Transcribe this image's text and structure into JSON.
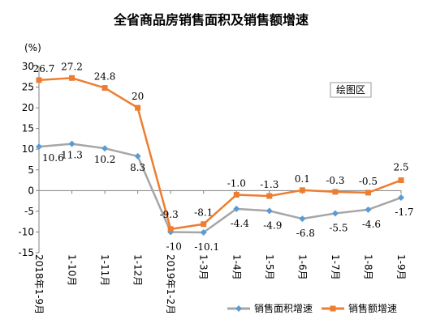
{
  "chart_data": {
    "type": "line",
    "title": "全省商品房销售面积及销售额增速",
    "unit_label": "(%)",
    "categories": [
      "2018年1-9月",
      "1-10月",
      "1-11月",
      "1-12月",
      "2019年1-2月",
      "1-3月",
      "1-4月",
      "1-5月",
      "1-6月",
      "1-7月",
      "1-8月",
      "1-9月"
    ],
    "ylim": [
      -15,
      30
    ],
    "yticks": [
      -15,
      -10,
      -5,
      0,
      5,
      10,
      15,
      20,
      25,
      30
    ],
    "grid": false,
    "legend_position": "bottom-right",
    "series": [
      {
        "name": "销售面积增速",
        "color": "#a6a6a6",
        "marker_color": "#5b9bd5",
        "marker": "diamond",
        "values": [
          10.6,
          11.3,
          10.2,
          8.3,
          -10,
          -10.1,
          -4.4,
          -4.9,
          -6.8,
          -5.5,
          -4.6,
          -1.7
        ],
        "labels": [
          "10.6",
          "11.3",
          "10.2",
          "8.3",
          "-10",
          "-10.1",
          "-4.4",
          "-4.9",
          "-6.8",
          "-5.5",
          "-4.6",
          "-1.7"
        ]
      },
      {
        "name": "销售额增速",
        "color": "#ed7d31",
        "marker_color": "#ed7d31",
        "marker": "square",
        "values": [
          26.7,
          27.2,
          24.8,
          20,
          -9.3,
          -8.1,
          -1.0,
          -1.3,
          0.1,
          -0.3,
          -0.5,
          2.5
        ],
        "labels": [
          "26.7",
          "27.2",
          "24.8",
          "20",
          "-9.3",
          "-8.1",
          "-1.0",
          "-1.3",
          "0.1",
          "-0.3",
          "-0.5",
          "2.5"
        ]
      }
    ]
  },
  "badge": {
    "label": "绘图区"
  }
}
